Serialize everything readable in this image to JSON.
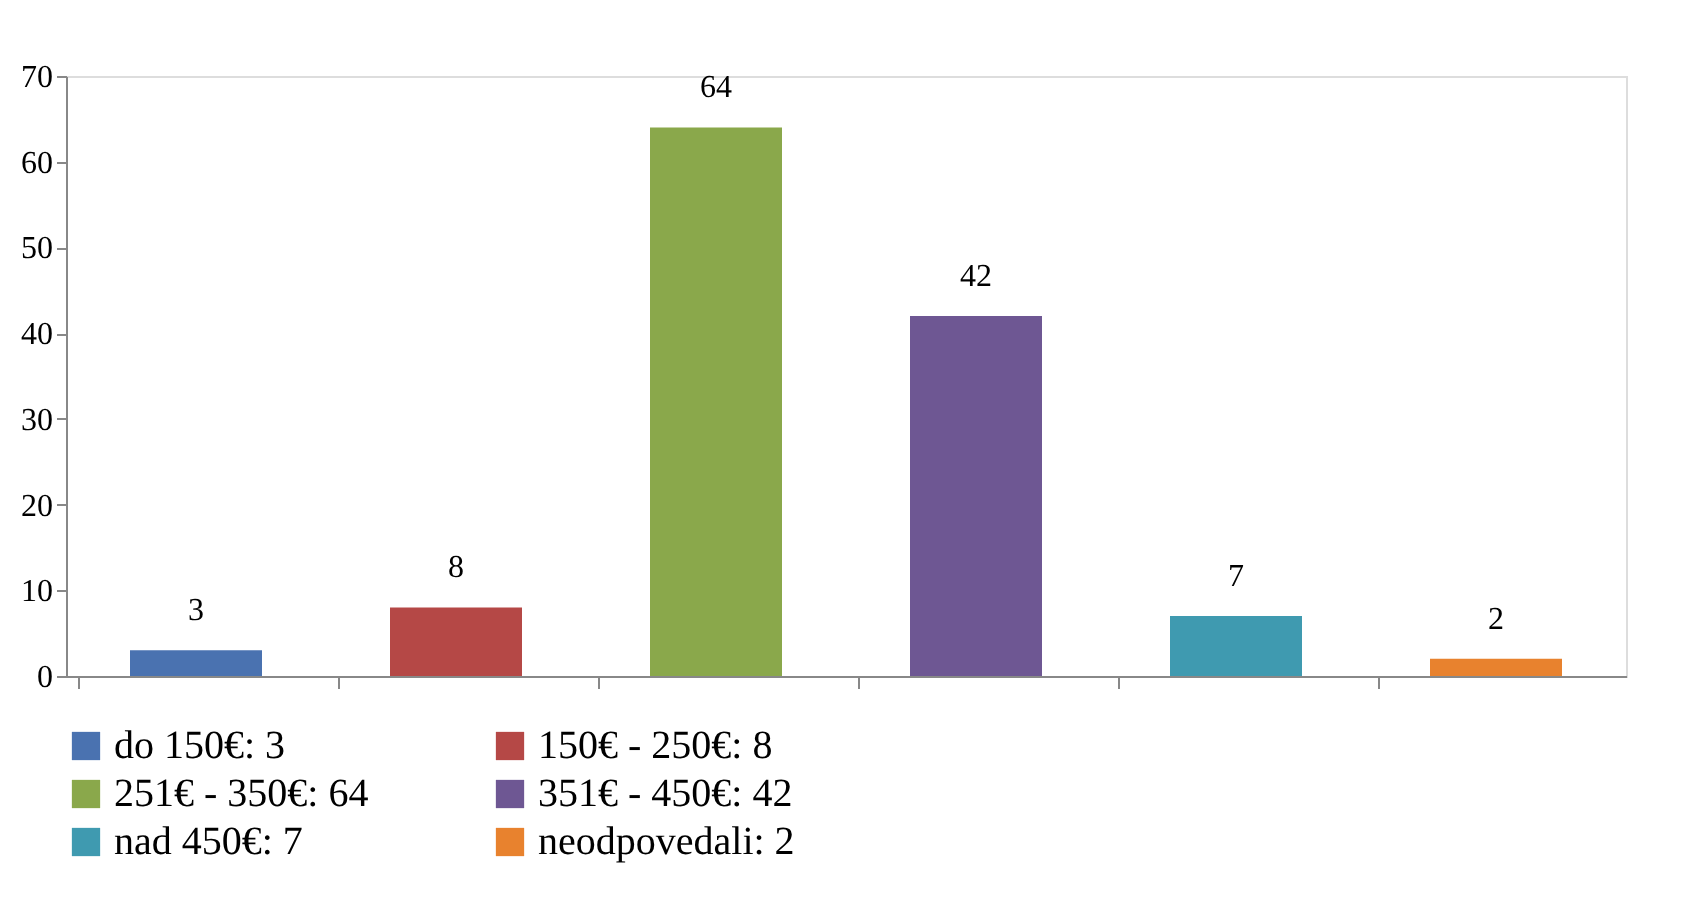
{
  "chart_data": {
    "type": "bar",
    "categories": [
      null,
      null,
      null,
      null,
      null,
      null
    ],
    "series": [
      {
        "name": "do 150€: 3",
        "color": "#4a72b0",
        "values": [
          3,
          null,
          null,
          null,
          null,
          null
        ]
      },
      {
        "name": "150€ - 250€: 8",
        "color": "#b54846",
        "values": [
          null,
          8,
          null,
          null,
          null,
          null
        ]
      },
      {
        "name": "251€ - 350€: 64",
        "color": "#8aa84b",
        "values": [
          null,
          null,
          64,
          null,
          null,
          null
        ]
      },
      {
        "name": "351€ - 450€: 42",
        "color": "#6e5793",
        "values": [
          null,
          null,
          null,
          42,
          null,
          null
        ]
      },
      {
        "name": "nad 450€: 7",
        "color": "#3f9ab0",
        "values": [
          null,
          null,
          null,
          null,
          7,
          null
        ]
      },
      {
        "name": "neodpovedali: 2",
        "color": "#e8822e",
        "values": [
          null,
          null,
          null,
          null,
          null,
          2
        ]
      }
    ],
    "ylim": [
      0,
      70
    ],
    "yticks": [
      0,
      10,
      20,
      30,
      40,
      50,
      60,
      70
    ],
    "data_labels": true,
    "grid": false,
    "legend": "bottom",
    "tick_labels": "y"
  }
}
